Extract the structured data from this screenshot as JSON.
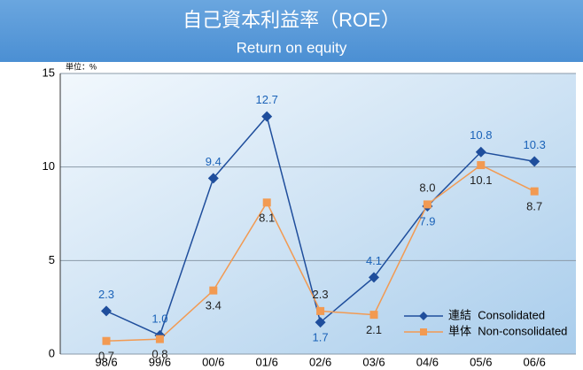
{
  "chart_data": {
    "type": "line",
    "title": "自己資本利益率（ROE）",
    "subtitle": "Return on equity",
    "unit_label": "単位：%",
    "categories": [
      "98/6",
      "99/6",
      "00/6",
      "01/6",
      "02/6",
      "03/6",
      "04/6",
      "05/6",
      "06/6"
    ],
    "series": [
      {
        "name": "連結  Consolidated",
        "color": "#1f4e9c",
        "label_color": "#1a62b8",
        "values": [
          2.3,
          1.0,
          9.4,
          12.7,
          1.7,
          4.1,
          7.9,
          10.8,
          10.3
        ],
        "value_labels": [
          "2.3",
          "1.0",
          "9.4",
          "12.7",
          "1.7",
          "4.1",
          "7.9",
          "10.8",
          "10.3"
        ]
      },
      {
        "name": "単体  Non-consolidated",
        "color": "#f29a52",
        "label_color": "#222222",
        "values": [
          0.7,
          0.8,
          3.4,
          8.1,
          2.3,
          2.1,
          8.0,
          10.1,
          8.7
        ],
        "value_labels": [
          "0.7",
          "0.8",
          "3.4",
          "8.1",
          "2.3",
          "2.1",
          "8.0",
          "10.1",
          "8.7"
        ]
      }
    ],
    "ylim": [
      0,
      15
    ],
    "yticks": [
      0,
      5,
      10,
      15
    ],
    "grid": true,
    "legend": "lower right"
  }
}
